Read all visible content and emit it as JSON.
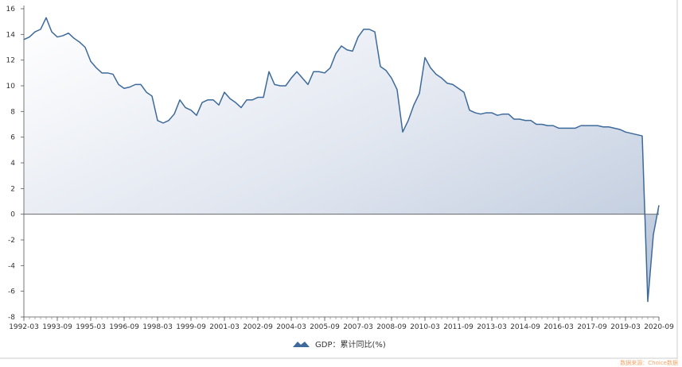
{
  "chart_data": {
    "type": "area",
    "title": "",
    "xlabel": "",
    "ylabel": "",
    "ylim": [
      -8,
      16
    ],
    "yticks": [
      -8,
      -6,
      -4,
      -2,
      0,
      2,
      4,
      6,
      8,
      10,
      12,
      14,
      16
    ],
    "x_tick_labels": [
      "1992-03",
      "1993-09",
      "1995-03",
      "1996-09",
      "1998-03",
      "1999-09",
      "2001-03",
      "2002-09",
      "2004-03",
      "2005-09",
      "2007-03",
      "2008-09",
      "2010-03",
      "2011-09",
      "2013-03",
      "2014-09",
      "2016-03",
      "2017-09",
      "2019-03",
      "2020-09"
    ],
    "grid": false,
    "legend_position": "bottom-center",
    "series": [
      {
        "name": "GDP：累计同比(%)",
        "color": "#3d6a9a",
        "x": [
          "1992-03",
          "1992-06",
          "1992-09",
          "1992-12",
          "1993-03",
          "1993-06",
          "1993-09",
          "1993-12",
          "1994-03",
          "1994-06",
          "1994-09",
          "1994-12",
          "1995-03",
          "1995-06",
          "1995-09",
          "1995-12",
          "1996-03",
          "1996-06",
          "1996-09",
          "1996-12",
          "1997-03",
          "1997-06",
          "1997-09",
          "1997-12",
          "1998-03",
          "1998-06",
          "1998-09",
          "1998-12",
          "1999-03",
          "1999-06",
          "1999-09",
          "1999-12",
          "2000-03",
          "2000-06",
          "2000-09",
          "2000-12",
          "2001-03",
          "2001-06",
          "2001-09",
          "2001-12",
          "2002-03",
          "2002-06",
          "2002-09",
          "2002-12",
          "2003-03",
          "2003-06",
          "2003-09",
          "2003-12",
          "2004-03",
          "2004-06",
          "2004-09",
          "2004-12",
          "2005-03",
          "2005-06",
          "2005-09",
          "2005-12",
          "2006-03",
          "2006-06",
          "2006-09",
          "2006-12",
          "2007-03",
          "2007-06",
          "2007-09",
          "2007-12",
          "2008-03",
          "2008-06",
          "2008-09",
          "2008-12",
          "2009-03",
          "2009-06",
          "2009-09",
          "2009-12",
          "2010-03",
          "2010-06",
          "2010-09",
          "2010-12",
          "2011-03",
          "2011-06",
          "2011-09",
          "2011-12",
          "2012-03",
          "2012-06",
          "2012-09",
          "2012-12",
          "2013-03",
          "2013-06",
          "2013-09",
          "2013-12",
          "2014-03",
          "2014-06",
          "2014-09",
          "2014-12",
          "2015-03",
          "2015-06",
          "2015-09",
          "2015-12",
          "2016-03",
          "2016-06",
          "2016-09",
          "2016-12",
          "2017-03",
          "2017-06",
          "2017-09",
          "2017-12",
          "2018-03",
          "2018-06",
          "2018-09",
          "2018-12",
          "2019-03",
          "2019-06",
          "2019-09",
          "2019-12",
          "2020-03",
          "2020-06",
          "2020-09"
        ],
        "values": [
          13.6,
          13.8,
          14.2,
          14.4,
          15.3,
          14.2,
          13.8,
          13.9,
          14.1,
          13.7,
          13.4,
          13.0,
          11.9,
          11.4,
          11.0,
          11.0,
          10.9,
          10.1,
          9.8,
          9.9,
          10.1,
          10.1,
          9.5,
          9.2,
          7.3,
          7.1,
          7.3,
          7.8,
          8.9,
          8.3,
          8.1,
          7.7,
          8.7,
          8.9,
          8.9,
          8.5,
          9.5,
          9.0,
          8.7,
          8.3,
          8.9,
          8.9,
          9.1,
          9.1,
          11.1,
          10.1,
          10.0,
          10.0,
          10.6,
          11.1,
          10.6,
          10.1,
          11.1,
          11.1,
          11.0,
          11.4,
          12.5,
          13.1,
          12.8,
          12.7,
          13.8,
          14.4,
          14.4,
          14.2,
          11.5,
          11.2,
          10.6,
          9.7,
          6.4,
          7.3,
          8.5,
          9.4,
          12.2,
          11.4,
          10.9,
          10.6,
          10.2,
          10.1,
          9.8,
          9.5,
          8.1,
          7.9,
          7.8,
          7.9,
          7.9,
          7.7,
          7.8,
          7.8,
          7.4,
          7.4,
          7.3,
          7.3,
          7.0,
          7.0,
          6.9,
          6.9,
          6.7,
          6.7,
          6.7,
          6.7,
          6.9,
          6.9,
          6.9,
          6.9,
          6.8,
          6.8,
          6.7,
          6.6,
          6.4,
          6.3,
          6.2,
          6.1,
          -6.8,
          -1.6,
          0.7
        ]
      }
    ]
  },
  "legend": {
    "label": "GDP：累计同比(%)"
  },
  "source_note": "数据来源：Choice数据"
}
